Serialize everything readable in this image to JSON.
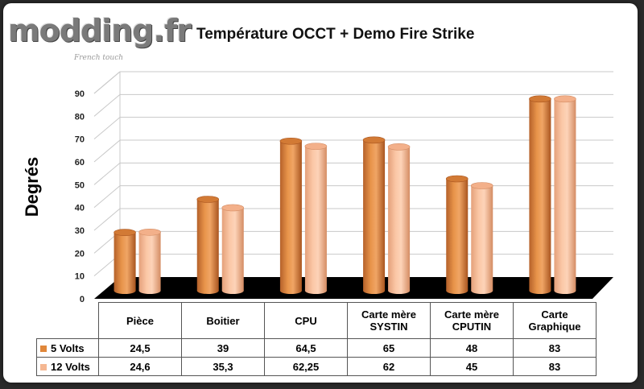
{
  "logo": {
    "text": "modding.fr",
    "tagline": "French touch"
  },
  "chart_data": {
    "type": "bar",
    "title": "Température OCCT + Demo Fire Strike",
    "ylabel": "Degrés",
    "xlabel": "",
    "ylim": [
      0,
      90
    ],
    "yticks": [
      0,
      10,
      20,
      30,
      40,
      50,
      60,
      70,
      80,
      90
    ],
    "grid": true,
    "categories": [
      "Pièce",
      "Boitier",
      "CPU",
      "Carte mère SYSTIN",
      "Carte mère CPUTIN",
      "Carte Graphique"
    ],
    "category_lines": [
      [
        "Pièce"
      ],
      [
        "Boitier"
      ],
      [
        "CPU"
      ],
      [
        "Carte mère",
        "SYSTIN"
      ],
      [
        "Carte mère",
        "CPUTIN"
      ],
      [
        "Carte",
        "Graphique"
      ]
    ],
    "series": [
      {
        "name": "5 Volts",
        "values": [
          24.5,
          39,
          64.5,
          65,
          48,
          83
        ],
        "labels": [
          "24,5",
          "39",
          "64,5",
          "65",
          "48",
          "83"
        ],
        "color": "#e0873a"
      },
      {
        "name": "12 Volts",
        "values": [
          24.6,
          35.3,
          62.25,
          62,
          45,
          83
        ],
        "labels": [
          "24,6",
          "35,3",
          "62,25",
          "62",
          "45",
          "83"
        ],
        "color": "#f5b792"
      }
    ],
    "legend": "data-table"
  }
}
